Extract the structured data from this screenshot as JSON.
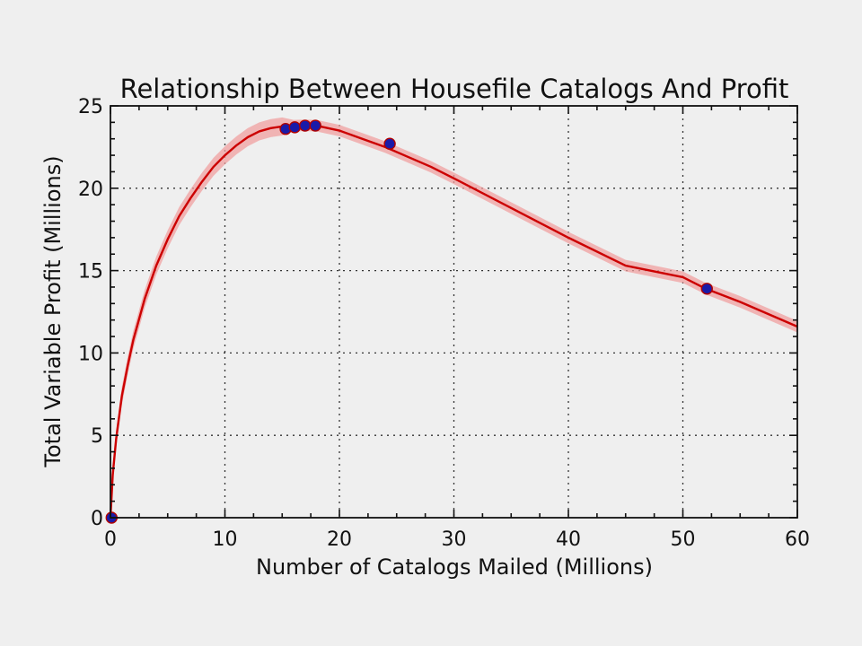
{
  "chart_data": {
    "type": "line",
    "title": "Relationship Between Housefile Catalogs And Profit",
    "xlabel": "Number of Catalogs Mailed (Millions)",
    "ylabel": "Total Variable Profit (Millions)",
    "xlim": [
      0,
      60
    ],
    "ylim": [
      0,
      25
    ],
    "xticks": [
      0,
      10,
      20,
      30,
      40,
      50,
      60
    ],
    "yticks": [
      0,
      5,
      10,
      15,
      20,
      25
    ],
    "grid": true,
    "fit_curve": {
      "x": [
        0,
        0.2,
        0.5,
        1,
        1.5,
        2,
        3,
        4,
        5,
        6,
        7,
        8,
        9,
        10,
        11,
        12,
        13,
        14,
        15,
        16,
        17,
        18,
        20,
        22,
        24,
        26,
        28,
        30,
        35,
        40,
        45,
        50,
        52,
        55,
        60
      ],
      "y": [
        0,
        2.6,
        4.8,
        7.4,
        9.2,
        10.8,
        13.3,
        15.3,
        16.9,
        18.3,
        19.4,
        20.4,
        21.3,
        22.0,
        22.6,
        23.1,
        23.45,
        23.65,
        23.75,
        23.8,
        23.82,
        23.8,
        23.5,
        23.0,
        22.5,
        21.9,
        21.3,
        20.6,
        18.8,
        17.0,
        15.3,
        14.6,
        13.9,
        13.1,
        11.6
      ],
      "color": "#cc0000",
      "band_color": "#f0a0a0"
    },
    "points": {
      "x": [
        0.1,
        15.3,
        16.1,
        17.0,
        17.9,
        24.4,
        52.1
      ],
      "y": [
        0,
        23.6,
        23.7,
        23.8,
        23.8,
        22.7,
        13.9
      ],
      "color": "#1a1aa8"
    }
  }
}
